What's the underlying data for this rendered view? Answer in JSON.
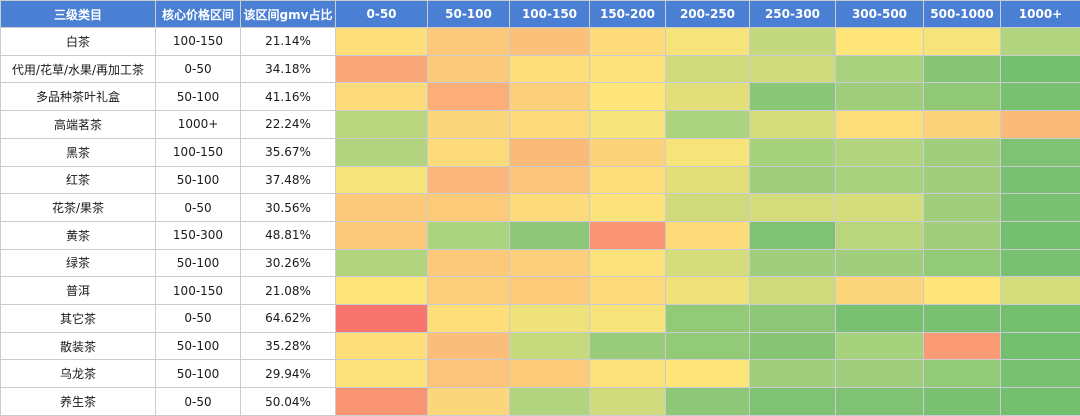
{
  "chart_data": {
    "type": "heatmap",
    "headers": [
      "三级类目",
      "核心价格区间",
      "该区间gmv占比",
      "0-50",
      "50-100",
      "100-150",
      "150-200",
      "200-250",
      "250-300",
      "300-500",
      "500-1000",
      "1000+"
    ],
    "price_bins": [
      "0-50",
      "50-100",
      "100-150",
      "150-200",
      "200-250",
      "250-300",
      "300-500",
      "500-1000",
      "1000+"
    ],
    "rows": [
      {
        "category": "白茶",
        "core_range": "100-150",
        "gmv_share": "21.14%",
        "levels": [
          0.54,
          0.66,
          0.7,
          0.56,
          0.48,
          0.33,
          0.5,
          0.48,
          0.28
        ]
      },
      {
        "category": "代用/花草/水果/再加工茶",
        "core_range": "0-50",
        "gmv_share": "34.18%",
        "levels": [
          0.8,
          0.66,
          0.54,
          0.52,
          0.36,
          0.36,
          0.25,
          0.14,
          0.08
        ]
      },
      {
        "category": "多品种茶叶礼盒",
        "core_range": "50-100",
        "gmv_share": "41.16%",
        "levels": [
          0.56,
          0.78,
          0.62,
          0.5,
          0.42,
          0.15,
          0.22,
          0.17,
          0.1
        ]
      },
      {
        "category": "高端茗茶",
        "core_range": "1000+",
        "gmv_share": "22.24%",
        "levels": [
          0.3,
          0.58,
          0.56,
          0.48,
          0.26,
          0.38,
          0.55,
          0.6,
          0.74
        ]
      },
      {
        "category": "黑茶",
        "core_range": "100-150",
        "gmv_share": "35.67%",
        "levels": [
          0.28,
          0.56,
          0.74,
          0.6,
          0.48,
          0.24,
          0.28,
          0.22,
          0.12
        ]
      },
      {
        "category": "红茶",
        "core_range": "50-100",
        "gmv_share": "37.48%",
        "levels": [
          0.48,
          0.76,
          0.68,
          0.54,
          0.42,
          0.22,
          0.25,
          0.22,
          0.1
        ]
      },
      {
        "category": "花茶/果茶",
        "core_range": "0-50",
        "gmv_share": "30.56%",
        "levels": [
          0.66,
          0.64,
          0.56,
          0.52,
          0.36,
          0.38,
          0.38,
          0.22,
          0.1
        ]
      },
      {
        "category": "黄茶",
        "core_range": "150-300",
        "gmv_share": "48.81%",
        "levels": [
          0.66,
          0.26,
          0.16,
          0.86,
          0.56,
          0.12,
          0.3,
          0.22,
          0.08
        ]
      },
      {
        "category": "绿茶",
        "core_range": "50-100",
        "gmv_share": "30.26%",
        "levels": [
          0.28,
          0.66,
          0.62,
          0.52,
          0.38,
          0.22,
          0.22,
          0.18,
          0.1
        ]
      },
      {
        "category": "普洱",
        "core_range": "100-150",
        "gmv_share": "21.08%",
        "levels": [
          0.5,
          0.62,
          0.64,
          0.56,
          0.46,
          0.36,
          0.58,
          0.5,
          0.38
        ]
      },
      {
        "category": "其它茶",
        "core_range": "0-50",
        "gmv_share": "64.62%",
        "levels": [
          0.96,
          0.54,
          0.46,
          0.48,
          0.18,
          0.16,
          0.1,
          0.1,
          0.08
        ]
      },
      {
        "category": "散装茶",
        "core_range": "50-100",
        "gmv_share": "35.28%",
        "levels": [
          0.54,
          0.72,
          0.34,
          0.2,
          0.18,
          0.14,
          0.24,
          0.84,
          0.08
        ]
      },
      {
        "category": "乌龙茶",
        "core_range": "50-100",
        "gmv_share": "29.94%",
        "levels": [
          0.52,
          0.68,
          0.64,
          0.52,
          0.5,
          0.22,
          0.22,
          0.18,
          0.1
        ]
      },
      {
        "category": "养生茶",
        "core_range": "0-50",
        "gmv_share": "50.04%",
        "levels": [
          0.86,
          0.58,
          0.28,
          0.36,
          0.16,
          0.12,
          0.12,
          0.1,
          0.08
        ]
      }
    ],
    "color_scale": [
      "#5bb46a",
      "#a9d27e",
      "#fde57a",
      "#fbb77a",
      "#f8696b"
    ],
    "grid": true,
    "header_color": "#4a7fd3",
    "header_text_color": "#ffffff"
  }
}
